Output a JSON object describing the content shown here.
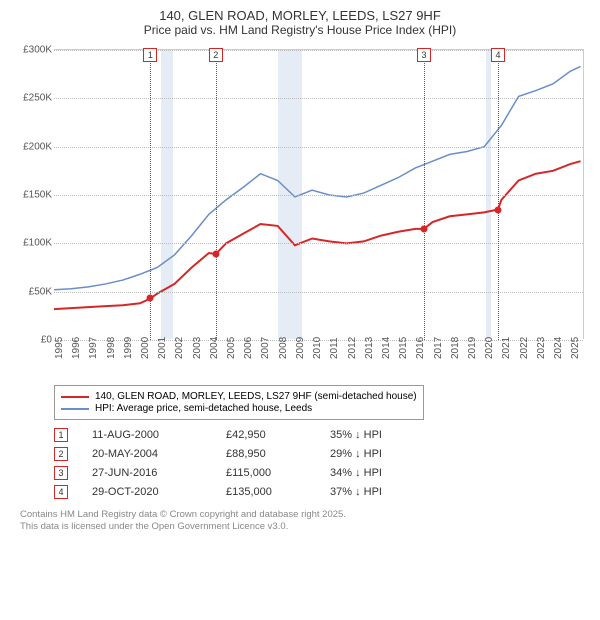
{
  "title": "140, GLEN ROAD, MORLEY, LEEDS, LS27 9HF",
  "subtitle": "Price paid vs. HM Land Registry's House Price Index (HPI)",
  "chart": {
    "type": "line",
    "xlim": [
      1995,
      2025.8
    ],
    "ylim": [
      0,
      300000
    ],
    "ytick_step": 50000,
    "yticks_labels": [
      "£0",
      "£50K",
      "£100K",
      "£150K",
      "£200K",
      "£250K",
      "£300K"
    ],
    "xticks": [
      1995,
      1996,
      1997,
      1998,
      1999,
      2000,
      2001,
      2002,
      2003,
      2004,
      2005,
      2006,
      2007,
      2008,
      2009,
      2010,
      2011,
      2012,
      2013,
      2014,
      2015,
      2016,
      2017,
      2018,
      2019,
      2020,
      2021,
      2022,
      2023,
      2024,
      2025
    ],
    "grid_color": "#bbbbbb",
    "background_color": "#ffffff",
    "recession_bands": [
      {
        "start": 2001.2,
        "end": 2001.9
      },
      {
        "start": 2008.0,
        "end": 2009.4
      },
      {
        "start": 2020.1,
        "end": 2020.4
      }
    ],
    "band_color": "#e6ecf5",
    "series": [
      {
        "name": "140, GLEN ROAD, MORLEY, LEEDS, LS27 9HF (semi-detached house)",
        "color": "#d62728",
        "width": 2,
        "points": [
          [
            1995,
            32000
          ],
          [
            1996,
            33000
          ],
          [
            1997,
            34000
          ],
          [
            1998,
            35000
          ],
          [
            1999,
            36000
          ],
          [
            2000,
            38000
          ],
          [
            2000.6,
            42950
          ],
          [
            2001,
            48000
          ],
          [
            2002,
            58000
          ],
          [
            2003,
            75000
          ],
          [
            2004,
            90000
          ],
          [
            2004.4,
            88950
          ],
          [
            2005,
            100000
          ],
          [
            2006,
            110000
          ],
          [
            2007,
            120000
          ],
          [
            2008,
            118000
          ],
          [
            2009,
            98000
          ],
          [
            2010,
            105000
          ],
          [
            2011,
            102000
          ],
          [
            2012,
            100000
          ],
          [
            2013,
            102000
          ],
          [
            2014,
            108000
          ],
          [
            2015,
            112000
          ],
          [
            2016,
            115000
          ],
          [
            2016.5,
            115000
          ],
          [
            2017,
            122000
          ],
          [
            2018,
            128000
          ],
          [
            2019,
            130000
          ],
          [
            2020,
            132000
          ],
          [
            2020.8,
            135000
          ],
          [
            2021,
            145000
          ],
          [
            2022,
            165000
          ],
          [
            2023,
            172000
          ],
          [
            2024,
            175000
          ],
          [
            2025,
            182000
          ],
          [
            2025.6,
            185000
          ]
        ]
      },
      {
        "name": "HPI: Average price, semi-detached house, Leeds",
        "color": "#6b8ec7",
        "width": 1.5,
        "points": [
          [
            1995,
            52000
          ],
          [
            1996,
            53000
          ],
          [
            1997,
            55000
          ],
          [
            1998,
            58000
          ],
          [
            1999,
            62000
          ],
          [
            2000,
            68000
          ],
          [
            2001,
            75000
          ],
          [
            2002,
            88000
          ],
          [
            2003,
            108000
          ],
          [
            2004,
            130000
          ],
          [
            2005,
            145000
          ],
          [
            2006,
            158000
          ],
          [
            2007,
            172000
          ],
          [
            2008,
            165000
          ],
          [
            2009,
            148000
          ],
          [
            2010,
            155000
          ],
          [
            2011,
            150000
          ],
          [
            2012,
            148000
          ],
          [
            2013,
            152000
          ],
          [
            2014,
            160000
          ],
          [
            2015,
            168000
          ],
          [
            2016,
            178000
          ],
          [
            2017,
            185000
          ],
          [
            2018,
            192000
          ],
          [
            2019,
            195000
          ],
          [
            2020,
            200000
          ],
          [
            2021,
            222000
          ],
          [
            2022,
            252000
          ],
          [
            2023,
            258000
          ],
          [
            2024,
            265000
          ],
          [
            2025,
            278000
          ],
          [
            2025.6,
            283000
          ]
        ]
      }
    ],
    "sale_dots": [
      [
        2000.6,
        42950
      ],
      [
        2004.4,
        88950
      ],
      [
        2016.5,
        115000
      ],
      [
        2020.8,
        135000
      ]
    ],
    "markers": [
      {
        "n": "1",
        "x": 2000.6,
        "color": "#d62728"
      },
      {
        "n": "2",
        "x": 2004.4,
        "color": "#d62728"
      },
      {
        "n": "3",
        "x": 2016.5,
        "color": "#d62728"
      },
      {
        "n": "4",
        "x": 2020.8,
        "color": "#d62728"
      }
    ]
  },
  "legend": {
    "items": [
      {
        "color": "#d62728",
        "label": "140, GLEN ROAD, MORLEY, LEEDS, LS27 9HF (semi-detached house)"
      },
      {
        "color": "#6b8ec7",
        "label": "HPI: Average price, semi-detached house, Leeds"
      }
    ]
  },
  "sales_table": [
    {
      "n": "1",
      "color": "#d62728",
      "date": "11-AUG-2000",
      "price": "£42,950",
      "delta": "35% ↓ HPI"
    },
    {
      "n": "2",
      "color": "#d62728",
      "date": "20-MAY-2004",
      "price": "£88,950",
      "delta": "29% ↓ HPI"
    },
    {
      "n": "3",
      "color": "#d62728",
      "date": "27-JUN-2016",
      "price": "£115,000",
      "delta": "34% ↓ HPI"
    },
    {
      "n": "4",
      "color": "#d62728",
      "date": "29-OCT-2020",
      "price": "£135,000",
      "delta": "37% ↓ HPI"
    }
  ],
  "footer": {
    "line1": "Contains HM Land Registry data © Crown copyright and database right 2025.",
    "line2": "This data is licensed under the Open Government Licence v3.0."
  }
}
